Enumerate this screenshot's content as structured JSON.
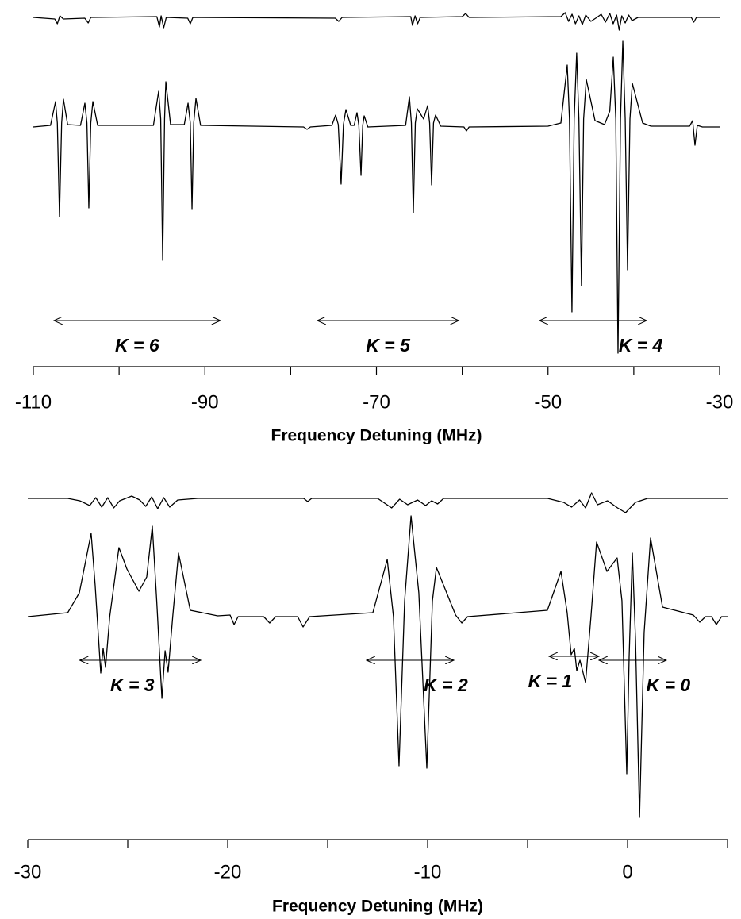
{
  "chart_data": [
    {
      "type": "line",
      "xlabel": "Frequency Detuning (MHz)",
      "xlim": [
        -110,
        -30
      ],
      "ylim": [
        -300,
        160
      ],
      "xticks": [
        -110,
        -90,
        -70,
        -50,
        -30
      ],
      "minor_xticks": [
        -100,
        -80,
        -60,
        -40
      ],
      "color": "#000000",
      "series": [
        {
          "x": [
            -110,
            -108,
            -107.41,
            -107.2,
            -106.95,
            -106.7,
            -106.49,
            -106,
            -104.5,
            -103.99,
            -103.75,
            -103.53,
            -103.3,
            -103.06,
            -102.5,
            -96,
            -95.39,
            -95.15,
            -94.92,
            -94.7,
            -94.55,
            -94,
            -92.4,
            -91.96,
            -91.7,
            -91.5,
            -91.3,
            -91.04,
            -90.5,
            -78.5,
            -78.09,
            -77.7,
            -75.2,
            -74.76,
            -74.45,
            -74.12,
            -73.85,
            -73.56,
            -73,
            -72.6,
            -72.27,
            -72.05,
            -71.8,
            -71.6,
            -71.43,
            -71,
            -66.6,
            -66.16,
            -65.93,
            -65.7,
            -65.47,
            -65.24,
            -64.5,
            -64.03,
            -63.8,
            -63.57,
            -63.35,
            -63.11,
            -62.5,
            -59.8,
            -59.51,
            -59.2,
            -50,
            -48.5,
            -47.76,
            -47.5,
            -47.21,
            -46.95,
            -46.66,
            -46.4,
            -46.1,
            -45.85,
            -45.54,
            -44.52,
            -43.41,
            -42.8,
            -42.39,
            -42.1,
            -41.84,
            -41.55,
            -41.28,
            -41,
            -40.73,
            -40.45,
            -40.17,
            -38.97,
            -38,
            -33.5,
            -33.14,
            -32.87,
            -32.6,
            -32,
            -30
          ],
          "values": [
            0,
            2,
            32,
            5,
            -113,
            5,
            35,
            3,
            2,
            30,
            5,
            -102,
            5,
            32,
            2,
            2,
            45,
            10,
            -168,
            10,
            57,
            3,
            3,
            30,
            5,
            -103,
            5,
            36,
            2,
            0,
            -3,
            0,
            2,
            15,
            3,
            -72,
            3,
            22,
            2,
            2,
            18,
            2,
            -61,
            2,
            14,
            0,
            2,
            38,
            5,
            -108,
            5,
            23,
            10,
            27,
            5,
            -73,
            5,
            15,
            1,
            0,
            -5,
            0,
            1,
            5,
            78,
            10,
            -233,
            10,
            93,
            10,
            -200,
            10,
            60,
            8,
            3,
            20,
            88,
            10,
            -285,
            10,
            108,
            10,
            -180,
            10,
            55,
            5,
            1,
            1,
            8,
            -23,
            2,
            0,
            0
          ]
        },
        {
          "x": [
            -110,
            -107.5,
            -107.2,
            -106.9,
            -106.5,
            -104,
            -103.6,
            -103.3,
            -95.6,
            -95.3,
            -95.1,
            -94.8,
            -94.5,
            -92,
            -91.7,
            -91.4,
            -74.8,
            -74.4,
            -74,
            -66,
            -65.8,
            -65.5,
            -65.2,
            -64.9,
            -60,
            -59.6,
            -59.2,
            -48.5,
            -48,
            -47.6,
            -47.2,
            -46.8,
            -46.4,
            -46,
            -45.6,
            -45,
            -44.3,
            -43.8,
            -43.3,
            -42.8,
            -42.4,
            -42,
            -41.7,
            -41.4,
            -41,
            -40.6,
            -40.2,
            -39.5,
            -33.3,
            -33,
            -32.7,
            -30
          ],
          "values": [
            138,
            136,
            130,
            140,
            136,
            137,
            131,
            138,
            139,
            126,
            140,
            125,
            138,
            137,
            130,
            138,
            137,
            133,
            138,
            139,
            128,
            140,
            130,
            138,
            139,
            143,
            138,
            139,
            144,
            133,
            142,
            130,
            140,
            129,
            141,
            133,
            138,
            142,
            132,
            143,
            130,
            141,
            122,
            140,
            131,
            141,
            134,
            138,
            138,
            132,
            138,
            138
          ]
        }
      ],
      "annotations": [
        {
          "text": "K = 6",
          "x_start": -107.6,
          "x_end": -88.2,
          "y": -244
        },
        {
          "text": "K = 5",
          "x_start": -76.9,
          "x_end": -60.4,
          "y": -244
        },
        {
          "text": "K = 4",
          "x_start": -51,
          "x_end": -38.5,
          "y": -244
        }
      ]
    },
    {
      "type": "line",
      "xlabel": "Frequency Detuning (MHz)",
      "xlim": [
        -30,
        5
      ],
      "ylim": [
        -281,
        177
      ],
      "xticks": [
        -30,
        -20,
        -10,
        0
      ],
      "minor_xticks": [
        -25,
        -15,
        -5,
        5
      ],
      "color": "#000000",
      "series": [
        {
          "x": [
            -30,
            -28,
            -27.42,
            -26.83,
            -26.63,
            -26.35,
            -26.23,
            -26.11,
            -25.9,
            -25.44,
            -25.04,
            -24.44,
            -24.05,
            -23.77,
            -23.55,
            -23.29,
            -23.13,
            -22.98,
            -22.75,
            -22.46,
            -21.87,
            -20.5,
            -19.88,
            -19.68,
            -19.48,
            -18.2,
            -17.9,
            -17.6,
            -16.5,
            -16.23,
            -15.9,
            -12.74,
            -12.02,
            -11.71,
            -11.43,
            -11.15,
            -10.83,
            -10.44,
            -10.04,
            -9.76,
            -9.56,
            -8.6,
            -8.29,
            -8,
            -4.01,
            -3.33,
            -3.02,
            -2.82,
            -2.66,
            -2.54,
            -2.38,
            -2.1,
            -1.83,
            -1.55,
            -1.03,
            -0.52,
            -0.28,
            -0.04,
            0.08,
            0.24,
            0.4,
            0.6,
            0.83,
            1.15,
            1.75,
            3.29,
            3.61,
            3.9,
            4.2,
            4.44,
            4.7,
            5
          ],
          "values": [
            0,
            5,
            30,
            105,
            40,
            -71,
            -40,
            -64,
            0,
            87,
            60,
            32,
            50,
            114,
            20,
            -103,
            -43,
            -70,
            0,
            80,
            8,
            1,
            2,
            -10,
            0,
            0,
            -8,
            0,
            0,
            -13,
            0,
            5,
            72,
            0,
            -188,
            20,
            127,
            30,
            -191,
            20,
            62,
            2,
            -8,
            0,
            8,
            57,
            5,
            -48,
            -40,
            -68,
            -55,
            -83,
            0,
            94,
            57,
            74,
            20,
            -198,
            -50,
            80,
            -30,
            -253,
            -20,
            99,
            12,
            2,
            -7,
            0,
            0,
            -10,
            0,
            0
          ]
        },
        {
          "x": [
            -30,
            -28,
            -27.4,
            -26.9,
            -26.6,
            -26.3,
            -26,
            -25.7,
            -25.4,
            -24.8,
            -24.4,
            -24.1,
            -23.8,
            -23.5,
            -23.2,
            -22.9,
            -22.5,
            -21.5,
            -16.2,
            -16,
            -15.8,
            -12.5,
            -11.8,
            -11.4,
            -11,
            -10.5,
            -10.1,
            -9.8,
            -9.5,
            -9.2,
            -4,
            -3.2,
            -2.8,
            -2.4,
            -2.1,
            -1.8,
            -1.5,
            -1,
            -0.5,
            -0.1,
            0.4,
            1,
            5
          ],
          "values": [
            149,
            149,
            146,
            140,
            150,
            138,
            150,
            137,
            146,
            152,
            147,
            139,
            151,
            136,
            150,
            138,
            147,
            149,
            149,
            145,
            149,
            149,
            137,
            148,
            141,
            147,
            140,
            146,
            142,
            149,
            149,
            144,
            138,
            147,
            137,
            156,
            141,
            146,
            137,
            131,
            144,
            149,
            149
          ]
        }
      ],
      "annotations": [
        {
          "text": "K = 3",
          "x_start": -27.4,
          "x_end": -21.35,
          "y": -55
        },
        {
          "text": "K = 2",
          "x_start": -13.06,
          "x_end": -8.69,
          "y": -55
        },
        {
          "text": "K = 1",
          "x_start": -3.93,
          "x_end": -1.43,
          "y": -50
        },
        {
          "text": "K = 0",
          "x_start": -1.43,
          "x_end": 1.94,
          "y": -55
        }
      ]
    }
  ]
}
